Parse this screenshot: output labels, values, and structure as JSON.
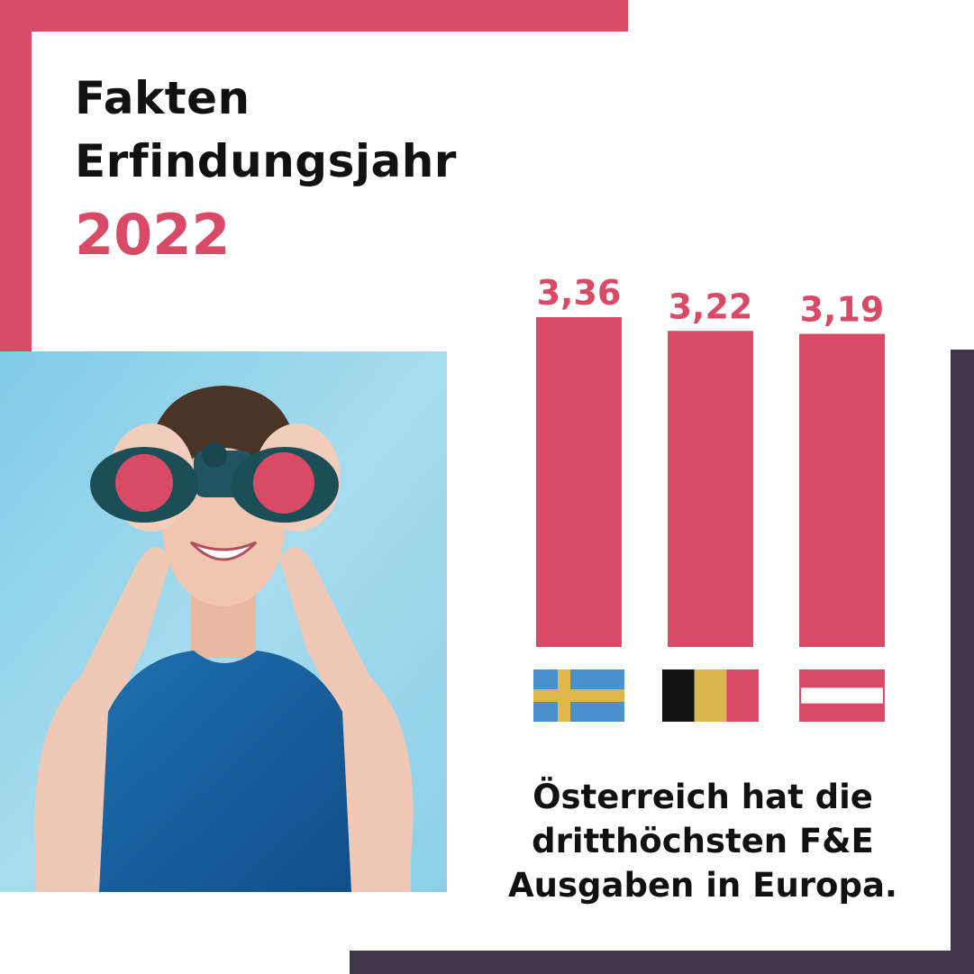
{
  "title": {
    "line1": "Fakten",
    "line2": "Erfindungsjahr",
    "year": "2022"
  },
  "colors": {
    "accent": "#d84a66",
    "frame_dark": "#3f3649",
    "text": "#111111",
    "photo_bg": "#8fd3ea"
  },
  "chart_data": {
    "type": "bar",
    "categories": [
      "Schweden",
      "Belgien",
      "Österreich"
    ],
    "values": [
      3.36,
      3.22,
      3.19
    ],
    "value_labels": [
      "3,36",
      "3,22",
      "3,19"
    ],
    "ylim": [
      0,
      3.36
    ],
    "grid": false,
    "legend": "none",
    "bar_color": "#d84a66",
    "category_icons": [
      "flag-sweden-icon",
      "flag-belgium-icon",
      "flag-austria-icon"
    ]
  },
  "caption": {
    "line1": "Österreich hat die",
    "line2": "dritthöchsten F&E",
    "line3": "Ausgaben in Europa."
  },
  "photo": {
    "icon": "woman-with-binoculars-photo"
  }
}
